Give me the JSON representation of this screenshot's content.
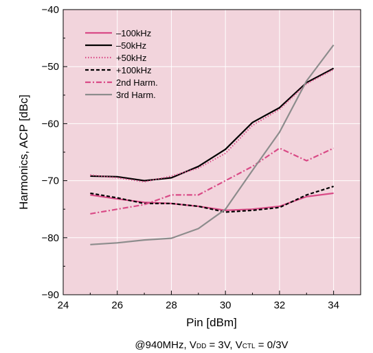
{
  "chart_data": {
    "type": "line",
    "xlabel": "Pin [dBm]",
    "ylabel": "Harmonics, ACP [dBc]",
    "xlim": [
      24,
      35
    ],
    "ylim": [
      -90,
      -40
    ],
    "xticks": [
      24,
      26,
      28,
      30,
      32,
      34
    ],
    "yticks": [
      -90,
      -80,
      -70,
      -60,
      -50,
      -40
    ],
    "x_tick_labels": [
      "24",
      "26",
      "28",
      "30",
      "32",
      "34"
    ],
    "y_tick_labels": [
      "−90",
      "−80",
      "−70",
      "−60",
      "−50",
      "−40"
    ],
    "grid": true,
    "legend_position": "top-left",
    "background_color": "#f2d4dc",
    "grid_color": "#ffffff",
    "caption": {
      "prefix": "@940MHz, V",
      "sub1": "DD",
      "mid": " = 3V, V",
      "sub2": "CTL",
      "suffix": " = 0/3V"
    },
    "series": [
      {
        "name": "–100kHz",
        "color": "#d94a86",
        "dash": "solid",
        "x": [
          25,
          26,
          27,
          28,
          29,
          30,
          31,
          32,
          33,
          34
        ],
        "y": [
          -72.5,
          -73.2,
          -73.8,
          -74.0,
          -74.5,
          -75.2,
          -75.0,
          -74.5,
          -72.8,
          -72.2
        ]
      },
      {
        "name": "–50kHz",
        "color": "#000000",
        "dash": "solid",
        "x": [
          25,
          26,
          27,
          28,
          29,
          30,
          31,
          32,
          33,
          34
        ],
        "y": [
          -69.2,
          -69.3,
          -70.0,
          -69.5,
          -67.5,
          -64.5,
          -59.8,
          -57.2,
          -52.8,
          -50.3
        ]
      },
      {
        "name": "+50kHz",
        "color": "#d94a86",
        "dash": "dotted",
        "x": [
          25,
          26,
          27,
          28,
          29,
          30,
          31,
          32,
          33,
          34
        ],
        "y": [
          -69.0,
          -69.5,
          -70.2,
          -69.2,
          -67.8,
          -65.2,
          -60.3,
          -57.5,
          -53.0,
          -50.5
        ]
      },
      {
        "name": "+100kHz",
        "color": "#000000",
        "dash": "dashed",
        "x": [
          25,
          26,
          27,
          28,
          29,
          30,
          31,
          32,
          33,
          34
        ],
        "y": [
          -72.2,
          -73.0,
          -74.0,
          -74.0,
          -74.5,
          -75.5,
          -75.2,
          -74.7,
          -72.5,
          -71.0
        ]
      },
      {
        "name": "2nd Harm.",
        "color": "#d94a86",
        "dash": "dashdot",
        "x": [
          25,
          26,
          27,
          28,
          29,
          30,
          31,
          32,
          33,
          34
        ],
        "y": [
          -75.8,
          -75.0,
          -74.2,
          -72.5,
          -72.5,
          -70.0,
          -67.5,
          -64.3,
          -66.5,
          -64.3
        ]
      },
      {
        "name": "3rd Harm.",
        "color": "#8c8c8c",
        "dash": "solid",
        "x": [
          25,
          26,
          27,
          28,
          29,
          30,
          31,
          32,
          33,
          34
        ],
        "y": [
          -81.2,
          -80.9,
          -80.4,
          -80.1,
          -78.4,
          -75.0,
          -68.2,
          -61.5,
          -52.5,
          -46.2
        ]
      }
    ]
  }
}
